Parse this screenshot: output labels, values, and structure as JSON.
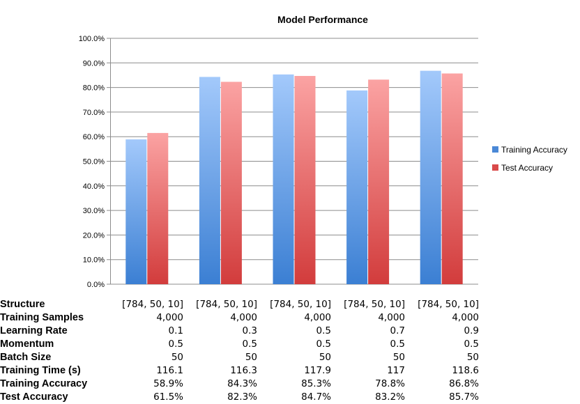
{
  "chart_data": {
    "type": "bar",
    "title": "Model Performance",
    "categories": [
      "",
      "",
      "",
      "",
      ""
    ],
    "series": [
      {
        "name": "Training Accuracy",
        "values": [
          58.9,
          84.3,
          85.3,
          78.8,
          86.8
        ],
        "color": "#4a88d6"
      },
      {
        "name": "Test Accuracy",
        "values": [
          61.5,
          82.3,
          84.7,
          83.2,
          85.7
        ],
        "color": "#d94a4a"
      }
    ],
    "ylim": [
      0,
      100
    ],
    "yticks": [
      "0.0%",
      "10.0%",
      "20.0%",
      "30.0%",
      "40.0%",
      "50.0%",
      "60.0%",
      "70.0%",
      "80.0%",
      "90.0%",
      "100.0%"
    ],
    "grid": true,
    "legend": "right"
  },
  "table": {
    "rows": [
      {
        "label": "Structure",
        "values": [
          "[784, 50, 10]",
          "[784, 50, 10]",
          "[784, 50, 10]",
          "[784, 50, 10]",
          "[784, 50, 10]"
        ]
      },
      {
        "label": "Training Samples",
        "values": [
          "4,000",
          "4,000",
          "4,000",
          "4,000",
          "4,000"
        ]
      },
      {
        "label": "Learning Rate",
        "values": [
          "0.1",
          "0.3",
          "0.5",
          "0.7",
          "0.9"
        ]
      },
      {
        "label": "Momentum",
        "values": [
          "0.5",
          "0.5",
          "0.5",
          "0.5",
          "0.5"
        ]
      },
      {
        "label": "Batch Size",
        "values": [
          "50",
          "50",
          "50",
          "50",
          "50"
        ]
      },
      {
        "label": "Training Time (s)",
        "values": [
          "116.1",
          "116.3",
          "117.9",
          "117",
          "118.6"
        ]
      },
      {
        "label": "Training Accuracy",
        "values": [
          "58.9%",
          "84.3%",
          "85.3%",
          "78.8%",
          "86.8%"
        ]
      },
      {
        "label": "Test Accuracy",
        "values": [
          "61.5%",
          "82.3%",
          "84.7%",
          "83.2%",
          "85.7%"
        ]
      }
    ]
  }
}
